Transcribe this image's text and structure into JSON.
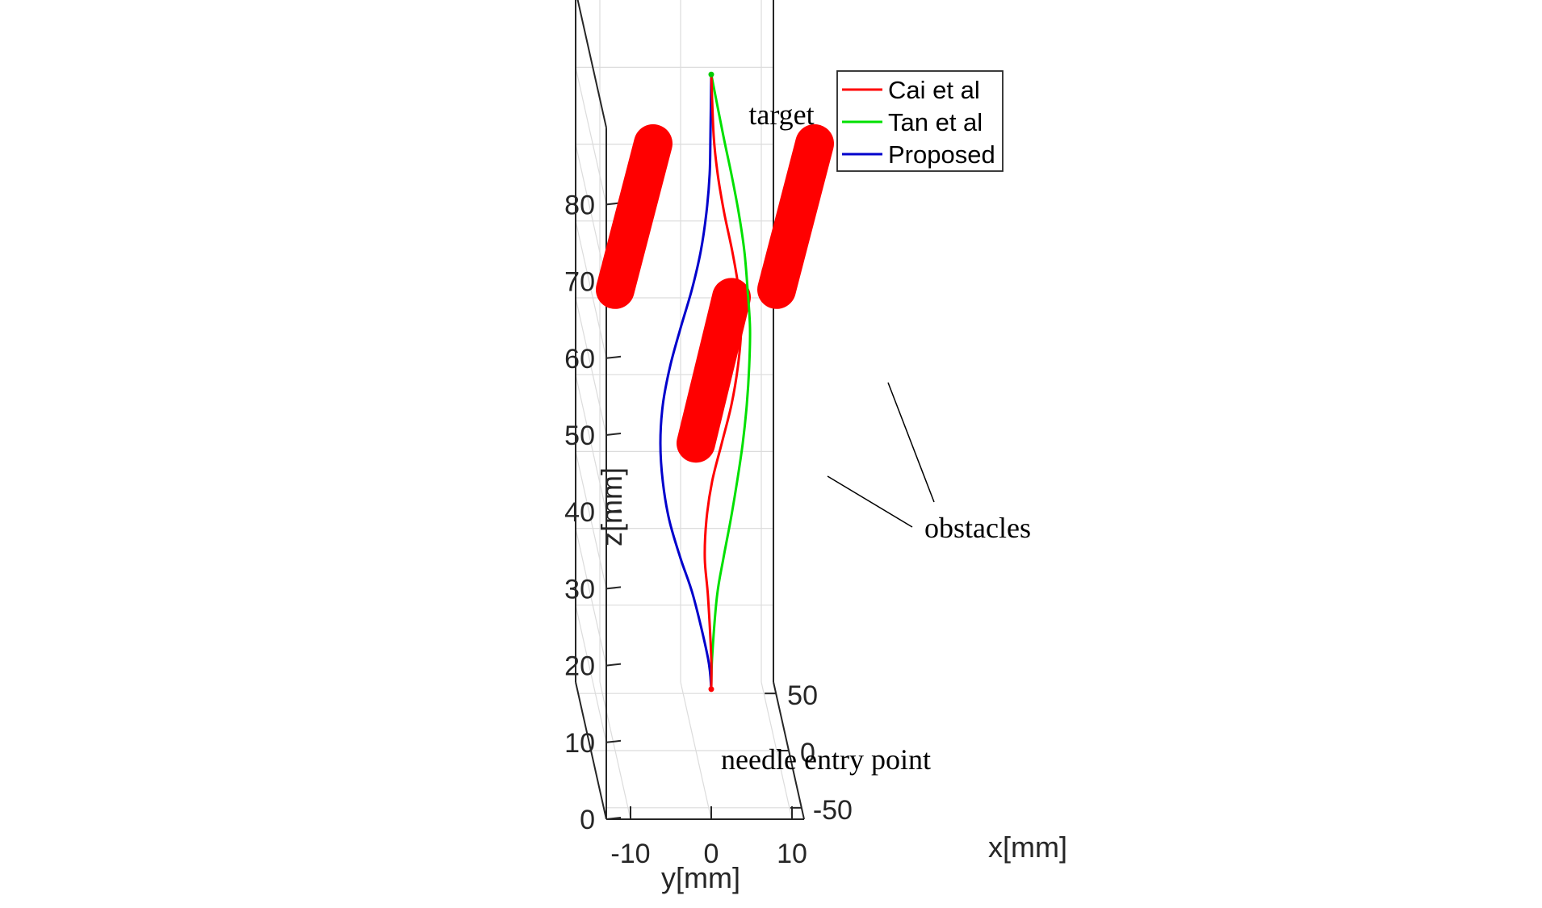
{
  "chart_data": {
    "type": "line",
    "view": "3d",
    "xlabel": "x[mm]",
    "ylabel": "y[mm]",
    "zlabel": "z[mm]",
    "x_ticks": [
      "-50",
      "0",
      "50"
    ],
    "y_ticks": [
      "-10",
      "0",
      "10"
    ],
    "z_ticks": [
      "0",
      "10",
      "20",
      "30",
      "40",
      "50",
      "60",
      "70",
      "80"
    ],
    "zlim": [
      0,
      90
    ],
    "legend_placement": "top-right",
    "grid": true,
    "series": [
      {
        "name": "Cai et al",
        "color": "#ff0000",
        "points": [
          [
            0,
            1.9,
            8
          ],
          [
            0,
            1.9,
            12
          ],
          [
            0,
            1.5,
            20
          ],
          [
            0,
            1.1,
            25
          ],
          [
            0,
            1.3,
            30
          ],
          [
            0,
            2.0,
            35
          ],
          [
            0,
            3.2,
            40
          ],
          [
            0,
            4.4,
            45
          ],
          [
            0,
            5.2,
            50
          ],
          [
            0,
            5.6,
            55
          ],
          [
            0,
            5.3,
            60
          ],
          [
            0,
            4.5,
            65
          ],
          [
            0,
            3.5,
            70
          ],
          [
            0,
            2.7,
            75
          ],
          [
            0,
            2.2,
            80
          ],
          [
            0,
            1.9,
            88
          ]
        ]
      },
      {
        "name": "Tan et al",
        "color": "#00e000",
        "points": [
          [
            0,
            1.9,
            8
          ],
          [
            0,
            2.0,
            12
          ],
          [
            0,
            2.6,
            20
          ],
          [
            0,
            3.4,
            25
          ],
          [
            0,
            4.3,
            30
          ],
          [
            0,
            5.1,
            35
          ],
          [
            0,
            5.8,
            40
          ],
          [
            0,
            6.3,
            45
          ],
          [
            0,
            6.6,
            50
          ],
          [
            0,
            6.7,
            55
          ],
          [
            0,
            6.4,
            60
          ],
          [
            0,
            6.0,
            65
          ],
          [
            0,
            5.3,
            70
          ],
          [
            0,
            4.4,
            75
          ],
          [
            0,
            3.4,
            80
          ],
          [
            0,
            1.9,
            88
          ]
        ]
      },
      {
        "name": "Proposed",
        "color": "#0000cc",
        "points": [
          [
            0,
            1.9,
            8
          ],
          [
            0,
            1.5,
            12
          ],
          [
            0,
            -0.3,
            20
          ],
          [
            0,
            -1.9,
            25
          ],
          [
            0,
            -3.3,
            30
          ],
          [
            0,
            -4.1,
            35
          ],
          [
            0,
            -4.4,
            40
          ],
          [
            0,
            -4.1,
            45
          ],
          [
            0,
            -3.2,
            50
          ],
          [
            0,
            -1.9,
            55
          ],
          [
            0,
            -0.5,
            60
          ],
          [
            0,
            0.6,
            65
          ],
          [
            0,
            1.3,
            70
          ],
          [
            0,
            1.7,
            75
          ],
          [
            0,
            1.8,
            80
          ],
          [
            0,
            1.9,
            88
          ]
        ]
      }
    ],
    "obstacles": [
      {
        "from": [
          0,
          -10,
          60
        ],
        "to": [
          0,
          -5.3,
          79
        ]
      },
      {
        "from": [
          0,
          10,
          60
        ],
        "to": [
          0,
          14.7,
          79
        ]
      },
      {
        "from": [
          0,
          0,
          40
        ],
        "to": [
          0,
          4.4,
          59
        ]
      }
    ],
    "obstacle_color": "#ff0000",
    "annotations": {
      "target": "target",
      "entry": "needle entry point",
      "obstacles": "obstacles"
    }
  }
}
